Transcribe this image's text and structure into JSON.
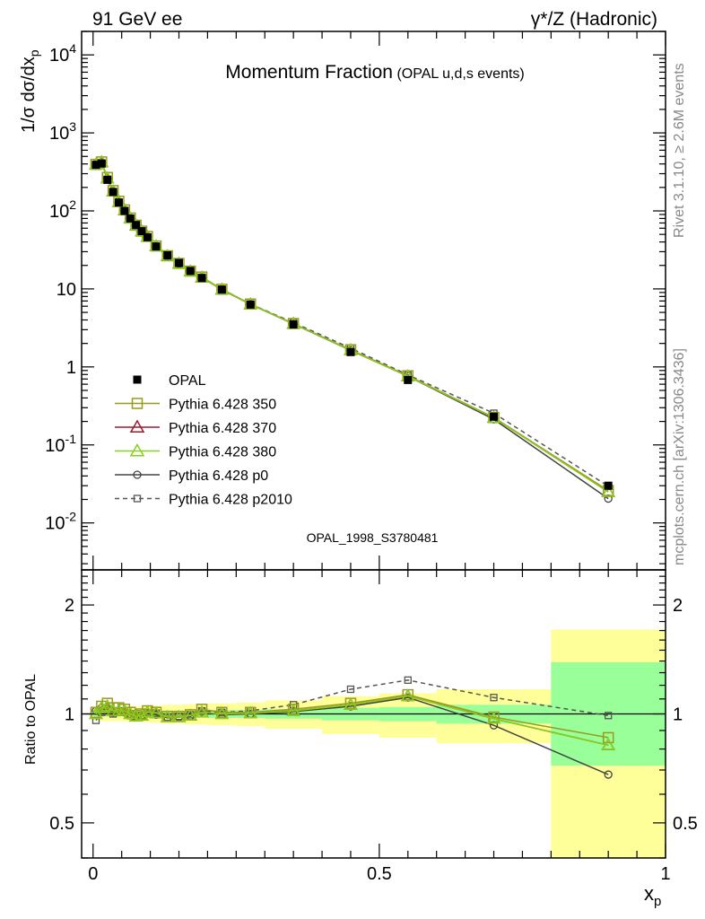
{
  "header": {
    "left": "91 GeV ee",
    "right": "γ*/Z (Hadronic)",
    "title_main": "Momentum Fraction",
    "title_sub": "(OPAL u,d,s events)"
  },
  "side_labels": {
    "rivet": "Rivet 3.1.10, ≥ 2.6M events",
    "mcplots": "mcplots.cern.ch [arXiv:1306.3436]"
  },
  "analysis_id": "OPAL_1998_S3780481",
  "colors": {
    "opal": "#000000",
    "p350": "#9a9a1e",
    "p370": "#9b1b2a",
    "p380": "#86d11b",
    "p0": "#444444",
    "p2010": "#555555",
    "band_stat": "#99ff99",
    "band_tot": "#ffff99"
  },
  "chart_data": [
    {
      "type": "line",
      "ylabel": "1/σ dσ/dx_p",
      "yscale": "log",
      "ylim": [
        0.0025,
        20000
      ],
      "xlim": [
        -0.02,
        1.0
      ],
      "ytick_labels": [
        "10^-2",
        "10^-1",
        "1",
        "10",
        "10^2",
        "10^3",
        "10^4"
      ],
      "x": [
        0.005,
        0.015,
        0.025,
        0.035,
        0.045,
        0.055,
        0.065,
        0.075,
        0.085,
        0.095,
        0.11,
        0.13,
        0.15,
        0.17,
        0.19,
        0.225,
        0.275,
        0.35,
        0.45,
        0.55,
        0.7,
        0.9
      ],
      "series": [
        {
          "name": "OPAL",
          "key": "opal",
          "marker": "filled-square",
          "values": [
            390,
            405,
            250,
            175,
            128,
            100,
            80,
            66,
            55,
            46,
            35,
            27,
            21.5,
            17,
            13.8,
            9.8,
            6.3,
            3.5,
            1.55,
            0.68,
            0.23,
            0.03
          ]
        },
        {
          "name": "Pythia 6.428 350",
          "key": "p350",
          "marker": "open-square",
          "values": [
            395,
            425,
            268,
            182,
            133,
            103,
            81,
            65.5,
            55,
            47,
            35.5,
            26.6,
            21.2,
            16.9,
            14.2,
            9.9,
            6.4,
            3.6,
            1.66,
            0.77,
            0.225,
            0.026
          ]
        },
        {
          "name": "Pythia 6.428 370",
          "key": "p370",
          "marker": "open-triangle",
          "values": [
            392,
            422,
            262,
            178,
            130,
            102,
            80,
            65,
            54.5,
            46.5,
            35.2,
            26.4,
            21,
            16.8,
            14,
            9.8,
            6.35,
            3.58,
            1.64,
            0.76,
            0.223,
            0.025
          ]
        },
        {
          "name": "Pythia 6.428 380",
          "key": "p380",
          "marker": "open-triangle",
          "values": [
            392,
            422,
            262,
            178,
            130,
            102,
            80,
            65,
            54.5,
            46.5,
            35.2,
            26.4,
            21,
            16.8,
            14,
            9.8,
            6.35,
            3.58,
            1.64,
            0.76,
            0.223,
            0.025
          ]
        },
        {
          "name": "Pythia 6.428 p0",
          "key": "p0",
          "marker": "open-circle",
          "values": [
            400,
            420,
            258,
            176,
            130,
            101,
            80,
            65,
            54.6,
            46.5,
            35,
            26.3,
            21,
            16.7,
            14,
            9.75,
            6.35,
            3.55,
            1.63,
            0.76,
            0.213,
            0.0205
          ]
        },
        {
          "name": "Pythia 6.428 p2010",
          "key": "p2010",
          "marker": "open-square-small",
          "dashed": true,
          "values": [
            375,
            408,
            255,
            174,
            130,
            101,
            79,
            65,
            54.5,
            46.2,
            35.2,
            26.4,
            21.2,
            16.9,
            14.1,
            9.9,
            6.4,
            3.7,
            1.74,
            0.79,
            0.255,
            0.0295
          ]
        }
      ]
    },
    {
      "type": "line",
      "ylabel": "Ratio to OPAL",
      "xlabel": "x_p",
      "yscale": "log",
      "ylim": [
        0.4,
        2.5
      ],
      "xlim": [
        -0.02,
        1.0
      ],
      "ytick_labels": [
        "0.5",
        "1",
        "2"
      ],
      "xtick_labels": [
        "0",
        "0.5",
        "1"
      ],
      "x": [
        0.005,
        0.015,
        0.025,
        0.035,
        0.045,
        0.055,
        0.065,
        0.075,
        0.085,
        0.095,
        0.11,
        0.13,
        0.15,
        0.17,
        0.19,
        0.225,
        0.275,
        0.35,
        0.45,
        0.55,
        0.7,
        0.9
      ],
      "bands": {
        "edges": [
          0.0,
          0.01,
          0.02,
          0.03,
          0.04,
          0.05,
          0.06,
          0.07,
          0.08,
          0.09,
          0.1,
          0.12,
          0.14,
          0.16,
          0.18,
          0.2,
          0.25,
          0.3,
          0.4,
          0.5,
          0.6,
          0.8,
          1.0
        ],
        "stat": [
          [
            0.985,
            1.015
          ],
          [
            0.985,
            1.015
          ],
          [
            0.985,
            1.015
          ],
          [
            0.985,
            1.015
          ],
          [
            0.985,
            1.015
          ],
          [
            0.985,
            1.015
          ],
          [
            0.985,
            1.015
          ],
          [
            0.985,
            1.015
          ],
          [
            0.985,
            1.015
          ],
          [
            0.985,
            1.015
          ],
          [
            0.985,
            1.015
          ],
          [
            0.98,
            1.02
          ],
          [
            0.98,
            1.02
          ],
          [
            0.98,
            1.02
          ],
          [
            0.98,
            1.02
          ],
          [
            0.975,
            1.025
          ],
          [
            0.975,
            1.025
          ],
          [
            0.97,
            1.03
          ],
          [
            0.96,
            1.04
          ],
          [
            0.955,
            1.045
          ],
          [
            0.94,
            1.06
          ],
          [
            0.72,
            1.39
          ]
        ],
        "total": [
          [
            0.96,
            1.04
          ],
          [
            0.955,
            1.045
          ],
          [
            0.955,
            1.045
          ],
          [
            0.955,
            1.045
          ],
          [
            0.955,
            1.045
          ],
          [
            0.955,
            1.045
          ],
          [
            0.95,
            1.05
          ],
          [
            0.95,
            1.05
          ],
          [
            0.95,
            1.05
          ],
          [
            0.95,
            1.05
          ],
          [
            0.945,
            1.055
          ],
          [
            0.94,
            1.06
          ],
          [
            0.94,
            1.06
          ],
          [
            0.935,
            1.065
          ],
          [
            0.935,
            1.065
          ],
          [
            0.93,
            1.07
          ],
          [
            0.925,
            1.075
          ],
          [
            0.91,
            1.09
          ],
          [
            0.88,
            1.12
          ],
          [
            0.86,
            1.14
          ],
          [
            0.83,
            1.17
          ],
          [
            0.38,
            1.71
          ]
        ]
      },
      "series": [
        {
          "name": "Pythia 6.428 350",
          "key": "p350",
          "marker": "open-square",
          "values": [
            1.01,
            1.05,
            1.07,
            1.04,
            1.04,
            1.03,
            1.01,
            0.99,
            1.0,
            1.02,
            1.01,
            0.985,
            0.985,
            0.995,
            1.03,
            1.01,
            1.01,
            1.03,
            1.07,
            1.13,
            0.98,
            0.86
          ]
        },
        {
          "name": "Pythia 6.428 370",
          "key": "p370",
          "marker": "open-triangle",
          "values": [
            1.0,
            1.04,
            1.05,
            1.02,
            1.02,
            1.02,
            1.0,
            0.985,
            0.99,
            1.01,
            1.005,
            0.98,
            0.98,
            0.99,
            1.01,
            1.0,
            1.005,
            1.02,
            1.06,
            1.12,
            0.97,
            0.82
          ]
        },
        {
          "name": "Pythia 6.428 380",
          "key": "p380",
          "marker": "open-triangle",
          "values": [
            1.0,
            1.04,
            1.05,
            1.02,
            1.02,
            1.02,
            1.0,
            0.985,
            0.99,
            1.01,
            1.005,
            0.98,
            0.98,
            0.99,
            1.01,
            1.0,
            1.005,
            1.02,
            1.06,
            1.12,
            0.97,
            0.82
          ]
        },
        {
          "name": "Pythia 6.428 p0",
          "key": "p0",
          "marker": "open-circle",
          "values": [
            1.02,
            1.04,
            1.03,
            1.01,
            1.02,
            1.01,
            1.0,
            0.985,
            0.99,
            1.005,
            0.995,
            0.975,
            0.98,
            0.985,
            1.015,
            0.995,
            1.0,
            1.015,
            1.05,
            1.11,
            0.93,
            0.68
          ]
        },
        {
          "name": "Pythia 6.428 p2010",
          "key": "p2010",
          "marker": "open-square-small",
          "dashed": true,
          "values": [
            0.96,
            1.01,
            1.03,
            1.0,
            1.02,
            1.01,
            0.99,
            0.98,
            0.99,
            1.005,
            1.005,
            0.98,
            0.985,
            0.995,
            1.02,
            1.01,
            1.02,
            1.06,
            1.17,
            1.24,
            1.11,
            0.99
          ]
        }
      ]
    }
  ]
}
